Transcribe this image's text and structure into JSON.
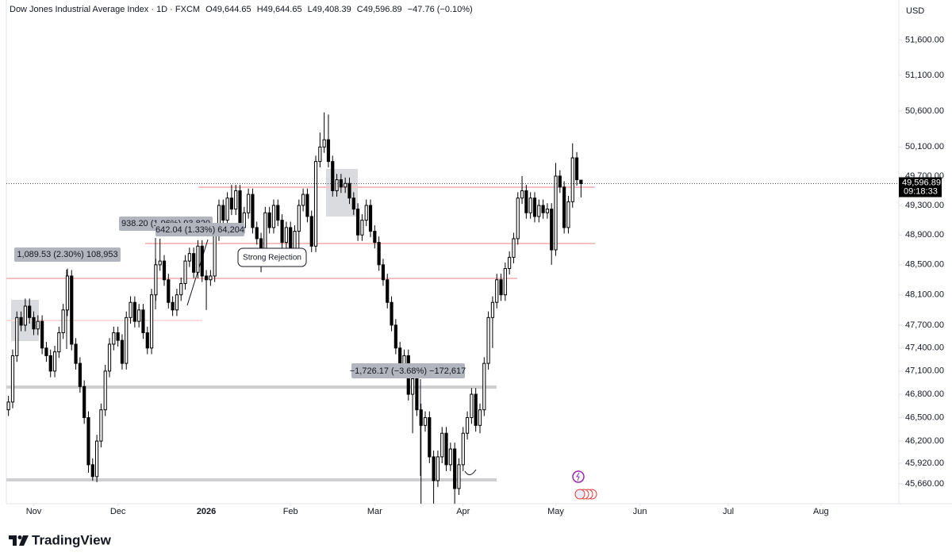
{
  "chart_data": {
    "type": "candlestick",
    "title": "Dow Jones Industrial Average Index · 1D · FXCM",
    "ohlc_labels": [
      "O49,644.65",
      "H49,644.65",
      "L49,408.39",
      "C49,596.89",
      "−47.76 (−0.10%)"
    ],
    "currency": "USD",
    "last_price_label": "49,596.89",
    "countdown": "09:18:33",
    "log_scale": true,
    "grid": false,
    "up_color": "#ffffff",
    "down_color": "#000000",
    "wick_color": "#000000",
    "xlim": [
      -0.5,
      211.5
    ],
    "xticks": [
      {
        "value": 6,
        "label": "Nov"
      },
      {
        "value": 26,
        "label": "Dec"
      },
      {
        "value": 47,
        "label": "2026"
      },
      {
        "value": 67,
        "label": "Feb"
      },
      {
        "value": 87,
        "label": "Mar"
      },
      {
        "value": 108,
        "label": "Apr"
      },
      {
        "value": 130,
        "label": "May"
      },
      {
        "value": 150,
        "label": "Jun"
      },
      {
        "value": 171,
        "label": "Jul"
      },
      {
        "value": 193,
        "label": "Aug"
      }
    ],
    "ylim": [
      45410,
      52080
    ],
    "yticks": [
      {
        "value": 51600,
        "label": "51,600.00"
      },
      {
        "value": 51100,
        "label": "51,100.00"
      },
      {
        "value": 50600,
        "label": "50,600.00"
      },
      {
        "value": 50100,
        "label": "50,100.00"
      },
      {
        "value": 49700,
        "label": "49,700.00"
      },
      {
        "value": 49300,
        "label": "49,300.00"
      },
      {
        "value": 48900,
        "label": "48,900.00"
      },
      {
        "value": 48500,
        "label": "48,500.00"
      },
      {
        "value": 48100,
        "label": "48,100.00"
      },
      {
        "value": 47700,
        "label": "47,700.00"
      },
      {
        "value": 47400,
        "label": "47,400.00"
      },
      {
        "value": 47100,
        "label": "47,100.00"
      },
      {
        "value": 46800,
        "label": "46,800.00"
      },
      {
        "value": 46500,
        "label": "46,500.00"
      },
      {
        "value": 46200,
        "label": "46,200.00"
      },
      {
        "value": 45920,
        "label": "45,920.00"
      },
      {
        "value": 45660,
        "label": "45,660.00"
      }
    ],
    "open": [
      46600,
      46700,
      47300,
      47800,
      47700,
      47950,
      47800,
      47650,
      47750,
      47400,
      47300,
      47100,
      47350,
      47600,
      47900,
      48350,
      47450,
      47200,
      46900,
      46500,
      45900,
      45750,
      46200,
      46600,
      47100,
      47450,
      47600,
      47500,
      47200,
      47800,
      48000,
      47750,
      47900,
      47600,
      47400,
      48100,
      48500,
      48550,
      48300,
      48000,
      47900,
      48100,
      48250,
      48550,
      48650,
      48400,
      48750,
      48350,
      48300,
      48350,
      48900,
      49300,
      49100,
      49400,
      49250,
      49500,
      49000,
      49200,
      49450,
      49000,
      48850,
      48700,
      49200,
      49000,
      49300,
      49100,
      48800,
      49000,
      48700,
      48950,
      49300,
      49450,
      49150,
      48750,
      49900,
      50100,
      50200,
      49900,
      49500,
      49650,
      49550,
      49600,
      49400,
      49250,
      48900,
      49100,
      49300,
      48950,
      48800,
      48500,
      48300,
      48000,
      47700,
      47400,
      47100,
      47300,
      46800,
      47000,
      46600,
      46400,
      46500,
      46000,
      45700,
      46000,
      46300,
      45900,
      46100,
      45600,
      45900,
      46300,
      46500,
      46800,
      46400,
      46600,
      47200,
      47800,
      48000,
      48300,
      48100,
      48450,
      48600,
      48850,
      49400,
      49500,
      49200,
      49400,
      49150,
      49300,
      49200,
      49250,
      48700,
      49700,
      49550,
      49000,
      49350,
      49950,
      49644.65
    ],
    "high": [
      46780,
      47380,
      47880,
      47880,
      48050,
      48050,
      47880,
      47830,
      47830,
      47480,
      47380,
      47430,
      47680,
      47980,
      48450,
      48430,
      47530,
      47280,
      46980,
      46580,
      45980,
      46280,
      46680,
      47180,
      47530,
      47680,
      47680,
      47580,
      47880,
      48080,
      48080,
      47980,
      47980,
      47680,
      48180,
      48580,
      48850,
      48630,
      48380,
      48080,
      48180,
      48330,
      48630,
      48730,
      48730,
      48830,
      48830,
      48430,
      48430,
      48980,
      49380,
      49380,
      49480,
      49580,
      49580,
      49580,
      49280,
      49530,
      49530,
      49080,
      48930,
      49280,
      49280,
      49380,
      49380,
      49180,
      49080,
      49080,
      49030,
      49380,
      49530,
      49530,
      49230,
      49980,
      50300,
      50580,
      50550,
      49980,
      49730,
      49730,
      49680,
      49680,
      49480,
      49330,
      49180,
      49380,
      49380,
      49030,
      48880,
      48580,
      48380,
      48080,
      47780,
      47480,
      47380,
      47380,
      47080,
      47080,
      46680,
      46580,
      46580,
      46080,
      46080,
      46380,
      46380,
      46180,
      46180,
      45980,
      46380,
      46580,
      46880,
      46880,
      46680,
      47280,
      47880,
      48080,
      48380,
      48380,
      48530,
      48680,
      48930,
      49480,
      49700,
      49580,
      49480,
      49480,
      49380,
      49380,
      49330,
      49330,
      49880,
      49780,
      49630,
      49430,
      50150,
      50030,
      49644.65
    ],
    "low": [
      46520,
      46620,
      47220,
      47620,
      47620,
      47720,
      47570,
      47570,
      47320,
      47220,
      47020,
      47020,
      47270,
      47520,
      47820,
      47370,
      47120,
      46820,
      46420,
      45800,
      45700,
      45680,
      46120,
      46520,
      47020,
      47370,
      47420,
      47120,
      47120,
      47720,
      47670,
      47670,
      47520,
      47320,
      47320,
      48020,
      48420,
      48220,
      47920,
      47820,
      47820,
      48020,
      48170,
      48470,
      48320,
      48320,
      48270,
      47900,
      48220,
      48270,
      48820,
      49020,
      49020,
      49170,
      49170,
      48920,
      48920,
      49120,
      48920,
      48770,
      48400,
      48620,
      48920,
      48920,
      49020,
      48720,
      48720,
      48620,
      48620,
      48500,
      49220,
      49070,
      48670,
      48670,
      49820,
      50020,
      49820,
      49420,
      49420,
      49470,
      49470,
      49320,
      49170,
      48820,
      48820,
      49020,
      48870,
      48720,
      48420,
      48220,
      47920,
      47620,
      47320,
      47020,
      47020,
      46720,
      46300,
      46520,
      45400,
      46320,
      45920,
      45400,
      45620,
      45920,
      45820,
      45820,
      45400,
      45520,
      45820,
      46220,
      46420,
      46320,
      46300,
      46520,
      47120,
      47400,
      47920,
      48020,
      48020,
      48370,
      48520,
      48770,
      49320,
      49120,
      49120,
      49070,
      49070,
      49120,
      49120,
      48500,
      48620,
      49470,
      48920,
      48920,
      49270,
      49570,
      49408.39
    ],
    "close": [
      46700,
      47300,
      47800,
      47700,
      47950,
      47800,
      47650,
      47750,
      47400,
      47300,
      47100,
      47350,
      47600,
      47900,
      48350,
      47450,
      47200,
      46900,
      46500,
      45900,
      45750,
      46200,
      46600,
      47100,
      47450,
      47600,
      47500,
      47200,
      47800,
      48000,
      47750,
      47900,
      47600,
      47400,
      48100,
      48500,
      48550,
      48300,
      48000,
      47900,
      48100,
      48250,
      48550,
      48650,
      48400,
      48750,
      48350,
      48300,
      48350,
      48900,
      49300,
      49100,
      49400,
      49250,
      49500,
      49000,
      49200,
      49450,
      49000,
      48850,
      48700,
      49200,
      49000,
      49300,
      49100,
      48800,
      49000,
      48700,
      48950,
      49300,
      49450,
      49150,
      48750,
      49900,
      50100,
      50200,
      49900,
      49500,
      49650,
      49550,
      49600,
      49400,
      49250,
      48900,
      49100,
      49300,
      48950,
      48800,
      48500,
      48300,
      48000,
      47700,
      47400,
      47100,
      47300,
      46800,
      47000,
      46600,
      46400,
      46500,
      46000,
      45700,
      46000,
      46300,
      45900,
      46100,
      45600,
      45900,
      46300,
      46500,
      46800,
      46400,
      46600,
      47200,
      47800,
      48000,
      48300,
      48100,
      48450,
      48600,
      48850,
      49400,
      49500,
      49200,
      49400,
      49150,
      49300,
      49200,
      49250,
      48700,
      49700,
      49550,
      49000,
      49350,
      49950,
      49650,
      49596.89
    ],
    "annotations": [
      "1,089.53 (2.30%) 108,953",
      "938.20 (1.96%) 93,820",
      "642.04 (1.33%) 64,204",
      "−1,726.17 (−3.68%) −172,617",
      "Strong Rejection"
    ]
  },
  "footer": {
    "brand": "TradingView"
  }
}
